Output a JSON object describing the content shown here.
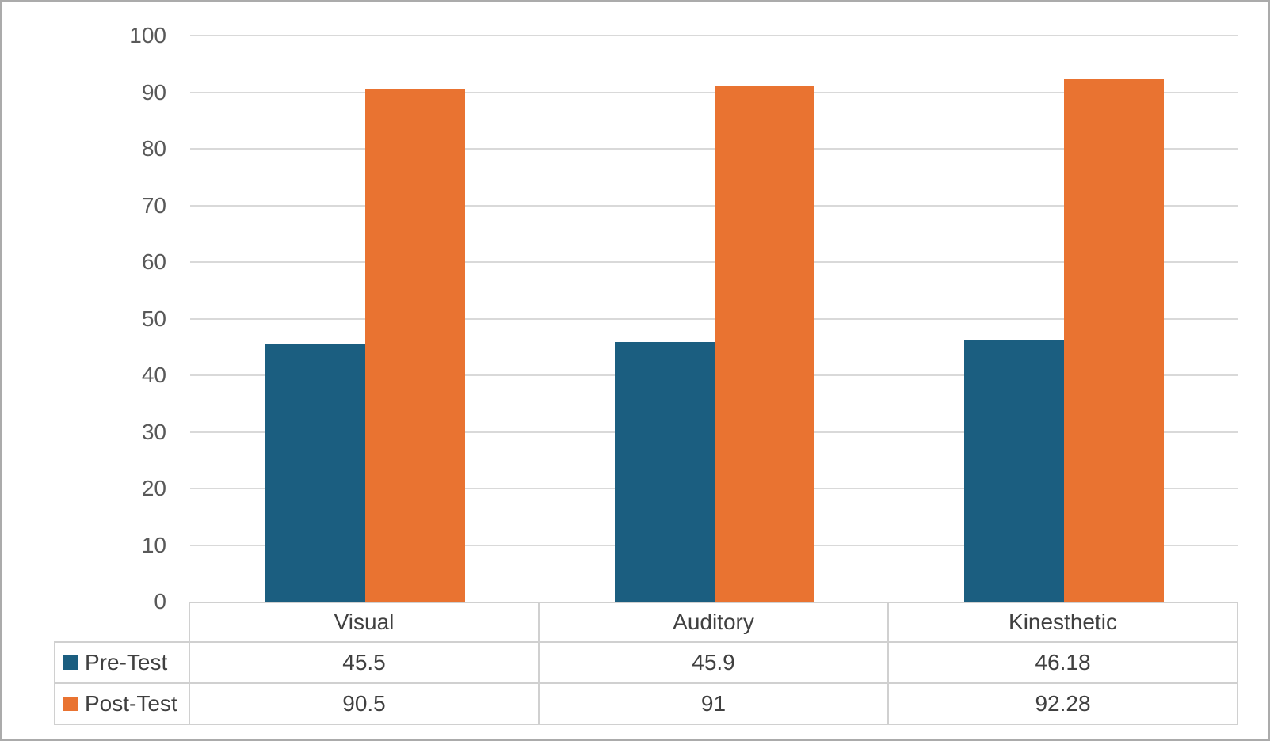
{
  "chart_data": {
    "type": "bar",
    "categories": [
      "Visual",
      "Auditory",
      "Kinesthetic"
    ],
    "series": [
      {
        "name": "Pre-Test",
        "color": "#1b5e80",
        "values": [
          45.5,
          45.9,
          46.18
        ],
        "display_values": [
          "45.5",
          "45.9",
          "46.18"
        ]
      },
      {
        "name": "Post-Test",
        "color": "#e97331",
        "values": [
          90.5,
          91,
          92.28
        ],
        "display_values": [
          "90.5",
          "91",
          "92.28"
        ]
      }
    ],
    "y_axis": {
      "min": 0,
      "max": 100,
      "step": 10,
      "ticks": [
        0,
        10,
        20,
        30,
        40,
        50,
        60,
        70,
        80,
        90,
        100
      ],
      "tick_labels": [
        "0",
        "10",
        "20",
        "30",
        "40",
        "50",
        "60",
        "70",
        "80",
        "90",
        "100"
      ]
    },
    "grid": true,
    "legend_position": "data-table-left",
    "data_table_shown": true,
    "title": ""
  },
  "figure_style": {
    "background": "#ffffff",
    "outer_border_color": "#ababab",
    "gridline_color": "#d9d9d9",
    "table_border_color": "#d0d0d0",
    "axis_label_color": "#595959",
    "table_text_color": "#404040"
  }
}
